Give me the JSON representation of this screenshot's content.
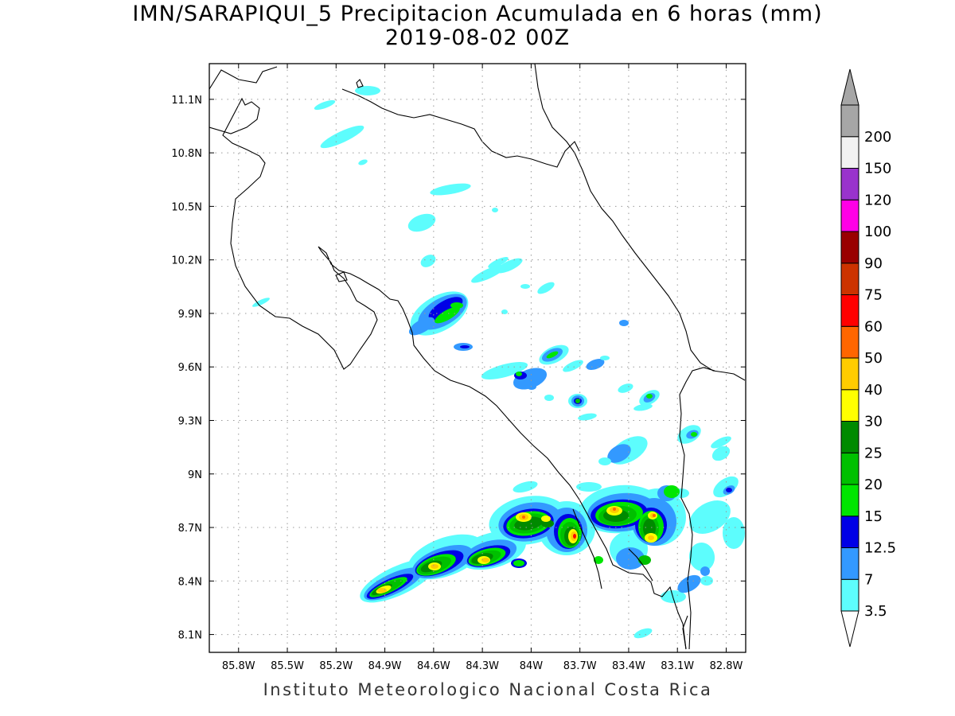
{
  "title_line1": "IMN/SARAPIQUI_5 Precipitacion Acumulada en 6 horas (mm)",
  "title_line2": "2019-08-02 00Z",
  "footer": "Instituto Meteorologico Nacional Costa Rica",
  "map": {
    "lon_range": [
      -85.98,
      -82.68
    ],
    "lat_range": [
      8.0,
      11.3
    ],
    "lon_ticks": [
      "85.8W",
      "85.5W",
      "85.2W",
      "84.9W",
      "84.6W",
      "84.3W",
      "84W",
      "83.7W",
      "83.4W",
      "83.1W",
      "82.8W"
    ],
    "lon_tick_values": [
      -85.8,
      -85.5,
      -85.2,
      -84.9,
      -84.6,
      -84.3,
      -84.0,
      -83.7,
      -83.4,
      -83.1,
      -82.8
    ],
    "lat_ticks": [
      "11.1N",
      "10.8N",
      "10.5N",
      "10.2N",
      "9.9N",
      "9.6N",
      "9.3N",
      "9N",
      "8.7N",
      "8.4N",
      "8.1N"
    ],
    "lat_tick_values": [
      11.1,
      10.8,
      10.5,
      10.2,
      9.9,
      9.6,
      9.3,
      9.0,
      8.7,
      8.4,
      8.1
    ],
    "grid": "dotted"
  },
  "colorbar": {
    "levels": [
      "3.5",
      "7",
      "12.5",
      "15",
      "20",
      "25",
      "30",
      "40",
      "50",
      "60",
      "75",
      "90",
      "100",
      "120",
      "150",
      "200"
    ],
    "colors": [
      "#5dfdfd",
      "#3399ff",
      "#0000e6",
      "#00e600",
      "#00c000",
      "#008a00",
      "#ffff00",
      "#ffcc00",
      "#ff6600",
      "#ff0000",
      "#cc3300",
      "#990000",
      "#ff00e6",
      "#9933cc",
      "#f2f2f2",
      "#a6a6a6"
    ],
    "top_arrow_color": "#a6a6a6",
    "bottom_arrow_color": "#ffffff"
  },
  "precip_colors": {
    "c35": "#5dfdfd",
    "c7": "#3399ff",
    "c125": "#0000e6",
    "c15": "#00e600",
    "c20": "#00c000",
    "c25": "#008a00",
    "c30": "#ffff00",
    "c40": "#ffcc00",
    "c50": "#ff6600",
    "c60": "#ff0000"
  }
}
